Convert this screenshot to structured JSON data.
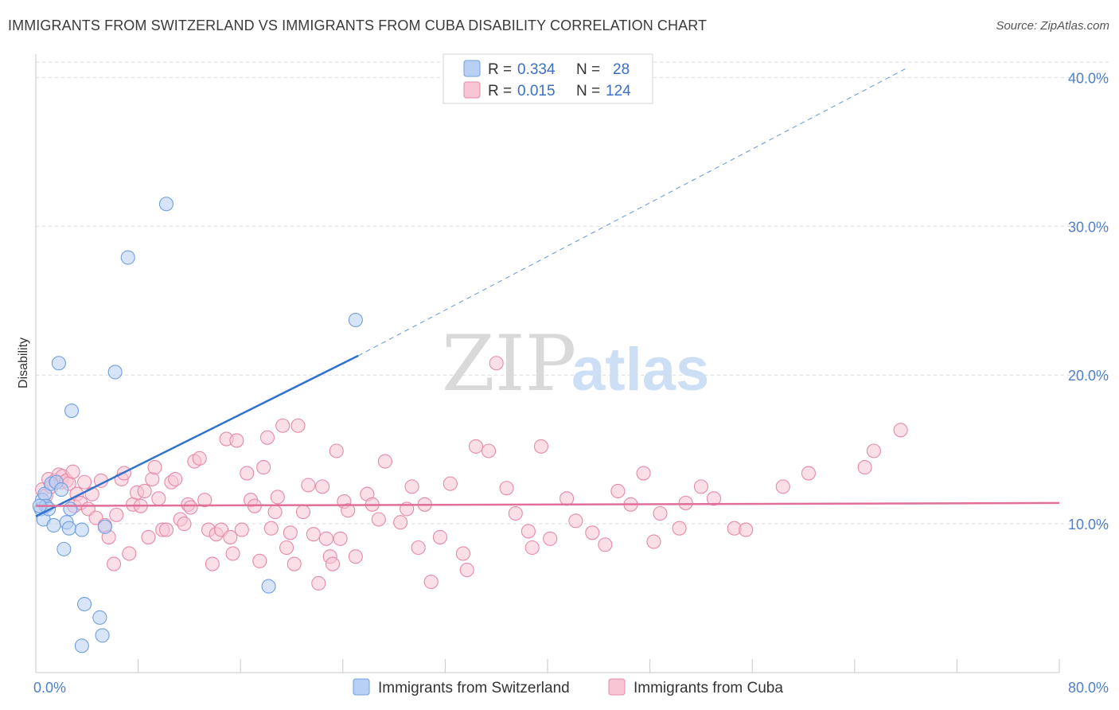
{
  "header": {
    "title": "IMMIGRANTS FROM SWITZERLAND VS IMMIGRANTS FROM CUBA DISABILITY CORRELATION CHART",
    "source": "Source: ZipAtlas.com"
  },
  "watermark": {
    "zip": "ZIP",
    "atlas": "atlas"
  },
  "stats_legend": [
    {
      "r_label": "R =",
      "r_value": "0.334",
      "n_label": "N =",
      "n_value": "28"
    },
    {
      "r_label": "R =",
      "r_value": "0.015",
      "n_label": "N =",
      "n_value": "124"
    }
  ],
  "colors": {
    "switzerland_fill": "#b8d0f4",
    "switzerland_stroke": "#6f9fe0",
    "switzerland_line": "#2f72d0",
    "cuba_fill": "#f7c4d4",
    "cuba_stroke": "#e58aa8",
    "cuba_line": "#e0709a",
    "grid": "#d8dce4",
    "axis_text": "#4f7fc9"
  },
  "chart_data": {
    "type": "scatter",
    "title": "IMMIGRANTS FROM SWITZERLAND VS IMMIGRANTS FROM CUBA DISABILITY CORRELATION CHART",
    "xlabel": "",
    "ylabel": "Disability",
    "xlim": [
      0,
      80
    ],
    "ylim": [
      0,
      42
    ],
    "x_tick_labels": [
      "0.0%",
      "80.0%"
    ],
    "y_ticks": [
      10,
      20,
      30,
      40
    ],
    "y_tick_labels": [
      "10.0%",
      "20.0%",
      "30.0%",
      "40.0%"
    ],
    "grid": true,
    "legend_position": "bottom",
    "series": [
      {
        "name": "Immigrants from Switzerland",
        "points": [
          [
            0.4,
            11.0
          ],
          [
            0.5,
            11.6
          ],
          [
            0.6,
            10.3
          ],
          [
            0.7,
            12.0
          ],
          [
            0.8,
            11.2
          ],
          [
            1.0,
            11.0
          ],
          [
            1.2,
            12.7
          ],
          [
            1.4,
            9.9
          ],
          [
            1.6,
            12.8
          ],
          [
            1.8,
            20.8
          ],
          [
            2.0,
            12.3
          ],
          [
            2.2,
            8.3
          ],
          [
            2.4,
            10.1
          ],
          [
            2.6,
            9.7
          ],
          [
            2.7,
            11.0
          ],
          [
            2.8,
            17.6
          ],
          [
            3.6,
            9.6
          ],
          [
            3.8,
            4.6
          ],
          [
            3.6,
            1.8
          ],
          [
            5.0,
            3.7
          ],
          [
            5.2,
            2.5
          ],
          [
            5.4,
            9.8
          ],
          [
            6.2,
            20.2
          ],
          [
            7.2,
            27.9
          ],
          [
            10.2,
            31.5
          ],
          [
            18.2,
            5.8
          ],
          [
            25.0,
            23.7
          ],
          [
            0.3,
            11.2
          ]
        ],
        "trend": {
          "x": [
            0.0,
            25.2
          ],
          "y": [
            10.5,
            21.3
          ],
          "dashed_to": [
            68.0,
            40.6
          ]
        }
      },
      {
        "name": "Immigrants from Cuba",
        "points": [
          [
            0.5,
            12.3
          ],
          [
            0.8,
            11.9
          ],
          [
            1.0,
            13.0
          ],
          [
            1.2,
            12.5
          ],
          [
            1.5,
            12.9
          ],
          [
            1.8,
            13.3
          ],
          [
            2.0,
            12.8
          ],
          [
            2.1,
            13.2
          ],
          [
            2.4,
            12.9
          ],
          [
            2.6,
            12.7
          ],
          [
            2.9,
            13.5
          ],
          [
            3.0,
            11.2
          ],
          [
            3.2,
            12.0
          ],
          [
            3.5,
            11.4
          ],
          [
            3.8,
            12.8
          ],
          [
            4.1,
            11.0
          ],
          [
            4.4,
            12.0
          ],
          [
            4.7,
            10.4
          ],
          [
            5.1,
            12.9
          ],
          [
            5.4,
            9.9
          ],
          [
            5.7,
            9.1
          ],
          [
            6.1,
            7.3
          ],
          [
            6.3,
            10.6
          ],
          [
            6.7,
            13.0
          ],
          [
            6.9,
            13.4
          ],
          [
            7.3,
            8.0
          ],
          [
            7.6,
            11.3
          ],
          [
            7.9,
            12.1
          ],
          [
            8.2,
            11.2
          ],
          [
            8.5,
            12.2
          ],
          [
            8.8,
            9.1
          ],
          [
            9.1,
            13.0
          ],
          [
            9.3,
            13.8
          ],
          [
            9.6,
            11.7
          ],
          [
            9.9,
            9.6
          ],
          [
            10.2,
            9.6
          ],
          [
            10.6,
            12.8
          ],
          [
            10.9,
            13.0
          ],
          [
            11.3,
            10.3
          ],
          [
            11.6,
            10.0
          ],
          [
            11.9,
            11.3
          ],
          [
            12.1,
            11.1
          ],
          [
            12.4,
            14.2
          ],
          [
            12.8,
            14.4
          ],
          [
            13.2,
            11.6
          ],
          [
            13.5,
            9.6
          ],
          [
            13.8,
            7.3
          ],
          [
            14.1,
            9.3
          ],
          [
            14.5,
            9.6
          ],
          [
            14.9,
            15.7
          ],
          [
            15.2,
            9.1
          ],
          [
            15.4,
            8.0
          ],
          [
            15.7,
            15.6
          ],
          [
            16.1,
            9.6
          ],
          [
            16.5,
            13.4
          ],
          [
            16.8,
            11.6
          ],
          [
            17.1,
            11.2
          ],
          [
            17.5,
            7.5
          ],
          [
            17.8,
            13.8
          ],
          [
            18.1,
            15.8
          ],
          [
            18.4,
            9.7
          ],
          [
            18.7,
            10.8
          ],
          [
            18.9,
            11.8
          ],
          [
            19.3,
            16.6
          ],
          [
            19.6,
            8.4
          ],
          [
            19.9,
            9.4
          ],
          [
            20.2,
            7.3
          ],
          [
            20.5,
            16.6
          ],
          [
            20.9,
            10.8
          ],
          [
            21.3,
            12.6
          ],
          [
            21.7,
            9.3
          ],
          [
            22.1,
            6.0
          ],
          [
            22.4,
            12.5
          ],
          [
            22.7,
            9.0
          ],
          [
            23.0,
            7.8
          ],
          [
            23.2,
            7.3
          ],
          [
            23.5,
            14.9
          ],
          [
            23.8,
            9.0
          ],
          [
            24.1,
            11.5
          ],
          [
            24.4,
            10.9
          ],
          [
            25.0,
            7.8
          ],
          [
            25.9,
            12.0
          ],
          [
            26.3,
            11.3
          ],
          [
            26.8,
            10.3
          ],
          [
            27.3,
            14.2
          ],
          [
            28.5,
            10.1
          ],
          [
            29.0,
            11.0
          ],
          [
            29.4,
            12.5
          ],
          [
            29.9,
            8.4
          ],
          [
            30.4,
            11.3
          ],
          [
            30.9,
            6.1
          ],
          [
            31.6,
            9.1
          ],
          [
            32.4,
            12.7
          ],
          [
            33.4,
            8.0
          ],
          [
            33.7,
            6.9
          ],
          [
            34.4,
            15.2
          ],
          [
            35.4,
            14.9
          ],
          [
            36.0,
            20.8
          ],
          [
            36.8,
            12.4
          ],
          [
            37.5,
            10.7
          ],
          [
            38.5,
            9.5
          ],
          [
            38.8,
            8.4
          ],
          [
            39.5,
            15.2
          ],
          [
            40.2,
            9.0
          ],
          [
            41.5,
            11.7
          ],
          [
            42.2,
            10.2
          ],
          [
            43.5,
            9.4
          ],
          [
            44.5,
            8.6
          ],
          [
            45.5,
            12.2
          ],
          [
            46.5,
            11.3
          ],
          [
            47.5,
            13.4
          ],
          [
            48.3,
            8.8
          ],
          [
            48.8,
            10.7
          ],
          [
            50.3,
            9.7
          ],
          [
            50.8,
            11.4
          ],
          [
            52.0,
            12.5
          ],
          [
            53.0,
            11.7
          ],
          [
            54.6,
            9.7
          ],
          [
            55.5,
            9.6
          ],
          [
            58.4,
            12.5
          ],
          [
            60.4,
            13.4
          ],
          [
            64.8,
            13.8
          ],
          [
            65.5,
            14.9
          ],
          [
            67.6,
            16.3
          ]
        ],
        "trend": {
          "x": [
            0.0,
            80.0
          ],
          "y": [
            11.2,
            11.4
          ]
        }
      }
    ]
  }
}
